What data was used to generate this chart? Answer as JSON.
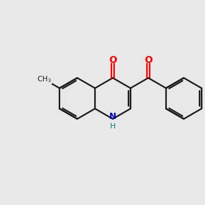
{
  "background_color": "#e8e8e8",
  "bond_color": "#1a1a1a",
  "o_color": "#ff0000",
  "n_color": "#0000cc",
  "h_color": "#008080",
  "text_color": "#1a1a1a",
  "figsize": [
    3.0,
    3.0
  ],
  "dpi": 100,
  "bond_lw": 1.6,
  "xlim": [
    0,
    10
  ],
  "ylim": [
    0,
    10
  ]
}
